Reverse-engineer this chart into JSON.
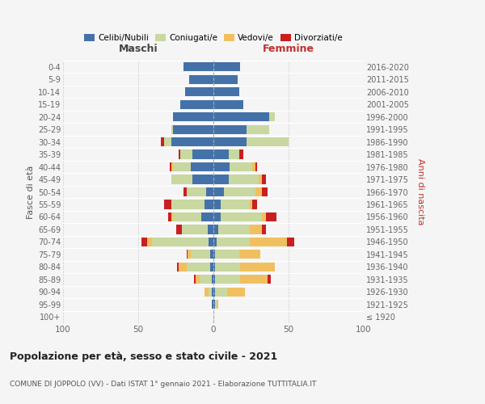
{
  "age_groups": [
    "100+",
    "95-99",
    "90-94",
    "85-89",
    "80-84",
    "75-79",
    "70-74",
    "65-69",
    "60-64",
    "55-59",
    "50-54",
    "45-49",
    "40-44",
    "35-39",
    "30-34",
    "25-29",
    "20-24",
    "15-19",
    "10-14",
    "5-9",
    "0-4"
  ],
  "birth_years": [
    "≤ 1920",
    "1921-1925",
    "1926-1930",
    "1931-1935",
    "1936-1940",
    "1941-1945",
    "1946-1950",
    "1951-1955",
    "1956-1960",
    "1961-1965",
    "1966-1970",
    "1971-1975",
    "1976-1980",
    "1981-1985",
    "1986-1990",
    "1991-1995",
    "1996-2000",
    "2001-2005",
    "2006-2010",
    "2011-2015",
    "2016-2020"
  ],
  "colors": {
    "celibi": "#4472a8",
    "coniugati": "#c8d8a0",
    "vedovi": "#f0c060",
    "divorziati": "#c82020"
  },
  "maschi": {
    "celibi": [
      0,
      1,
      1,
      1,
      2,
      2,
      3,
      4,
      8,
      6,
      5,
      14,
      15,
      14,
      28,
      27,
      27,
      22,
      19,
      16,
      20
    ],
    "coniugati": [
      0,
      0,
      2,
      8,
      16,
      13,
      38,
      17,
      19,
      22,
      13,
      14,
      12,
      8,
      5,
      1,
      0,
      0,
      0,
      0,
      0
    ],
    "vedovi": [
      0,
      0,
      3,
      3,
      5,
      2,
      3,
      0,
      1,
      0,
      0,
      0,
      1,
      0,
      0,
      0,
      0,
      0,
      0,
      0,
      0
    ],
    "divorziati": [
      0,
      0,
      0,
      1,
      1,
      1,
      4,
      4,
      2,
      5,
      2,
      0,
      1,
      1,
      2,
      0,
      0,
      0,
      0,
      0,
      0
    ]
  },
  "femmine": {
    "celibi": [
      0,
      1,
      1,
      1,
      1,
      1,
      2,
      3,
      5,
      5,
      7,
      10,
      11,
      10,
      22,
      22,
      37,
      20,
      17,
      16,
      18
    ],
    "coniugati": [
      0,
      1,
      8,
      17,
      17,
      16,
      22,
      21,
      27,
      19,
      21,
      20,
      15,
      7,
      28,
      15,
      4,
      0,
      0,
      0,
      0
    ],
    "vedovi": [
      0,
      1,
      12,
      18,
      23,
      14,
      25,
      8,
      3,
      2,
      4,
      2,
      2,
      0,
      0,
      0,
      0,
      0,
      0,
      0,
      0
    ],
    "divorziati": [
      0,
      0,
      0,
      2,
      0,
      0,
      5,
      3,
      7,
      3,
      4,
      3,
      1,
      3,
      0,
      0,
      0,
      0,
      0,
      0,
      0
    ]
  },
  "title": "Popolazione per età, sesso e stato civile - 2021",
  "subtitle": "COMUNE DI JOPPOLO (VV) - Dati ISTAT 1° gennaio 2021 - Elaborazione TUTTITALIA.IT",
  "label_maschi": "Maschi",
  "label_femmine": "Femmine",
  "ylabel_left": "Fasce di età",
  "ylabel_right": "Anni di nascita",
  "xlim": 100,
  "legend_labels": [
    "Celibi/Nubili",
    "Coniugati/e",
    "Vedovi/e",
    "Divorziati/e"
  ],
  "bg_color": "#f5f5f5"
}
